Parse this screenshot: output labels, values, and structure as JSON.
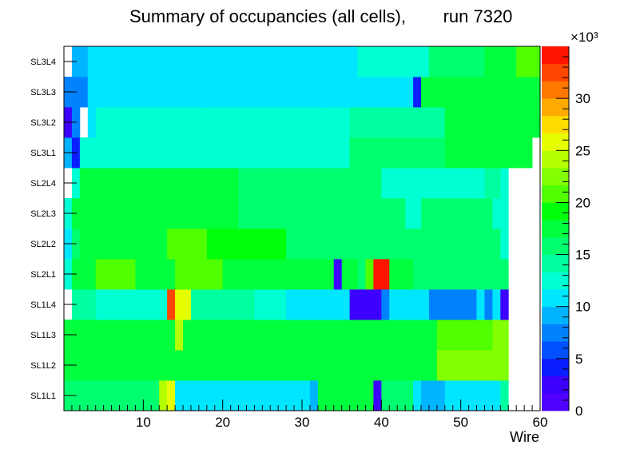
{
  "chart_data": {
    "type": "heatmap",
    "title": "Summary of occupancies (all cells),",
    "run_label": "run 7320",
    "xlabel": "Wire",
    "x_range": [
      0,
      60
    ],
    "x_ticks": [
      10,
      20,
      30,
      40,
      50,
      60
    ],
    "y_categories": [
      "SL1L1",
      "SL1L2",
      "SL1L3",
      "SL1L4",
      "SL2L1",
      "SL2L2",
      "SL2L3",
      "SL2L4",
      "SL3L1",
      "SL3L2",
      "SL3L3",
      "SL3L4"
    ],
    "z_range": [
      0,
      35000
    ],
    "z_exponent_label": "×10³",
    "z_ticks": [
      "0",
      "5",
      "10",
      "15",
      "20",
      "25",
      "30"
    ],
    "z_tick_values": [
      0,
      5,
      10,
      15,
      20,
      25,
      30
    ],
    "palette": [
      "#5000ff",
      "#3c00ff",
      "#0a1eff",
      "#0050ff",
      "#0082ff",
      "#00b4ff",
      "#00e6ff",
      "#00ffd2",
      "#00ffa0",
      "#00ff6e",
      "#00ff3c",
      "#00ff0a",
      "#50ff00",
      "#82ff00",
      "#b4ff00",
      "#e6ff00",
      "#ffdc00",
      "#ffaa00",
      "#ff7800",
      "#ff4600",
      "#ff1400"
    ],
    "values_thousands": {
      "SL1L1": [
        15,
        15,
        15,
        15,
        16,
        16,
        16,
        16,
        16,
        16,
        16,
        16,
        24,
        26,
        11,
        11,
        11,
        11,
        11,
        11,
        11,
        11,
        11,
        11,
        11,
        10,
        10,
        10,
        10,
        10,
        10,
        9,
        17,
        17,
        18,
        18,
        18,
        18,
        18,
        3,
        16,
        16,
        16,
        16,
        10,
        9,
        9,
        9,
        11,
        11,
        11,
        11,
        11,
        11,
        11,
        14,
        0,
        0,
        0,
        0
      ],
      "SL1L2": [
        18,
        18,
        18,
        18,
        18,
        18,
        18,
        18,
        18,
        18,
        18,
        18,
        18,
        18,
        18,
        18,
        18,
        18,
        18,
        18,
        17,
        17,
        17,
        17,
        17,
        17,
        17,
        17,
        17,
        17,
        17,
        17,
        17,
        17,
        17,
        17,
        17,
        17,
        17,
        17,
        17,
        17,
        17,
        17,
        17,
        17,
        17,
        22,
        22,
        22,
        22,
        22,
        22,
        22,
        22,
        22,
        0,
        0,
        0,
        0
      ],
      "SL1L3": [
        18,
        18,
        18,
        18,
        18,
        18,
        18,
        18,
        18,
        18,
        18,
        18,
        18,
        18,
        24,
        18,
        18,
        18,
        18,
        18,
        18,
        18,
        18,
        18,
        18,
        18,
        18,
        18,
        18,
        18,
        18,
        18,
        18,
        18,
        18,
        18,
        18,
        18,
        18,
        18,
        18,
        18,
        18,
        18,
        18,
        18,
        18,
        21,
        21,
        21,
        21,
        21,
        21,
        21,
        23,
        23,
        0,
        0,
        0,
        0
      ],
      "SL1L4": [
        0,
        14,
        14,
        14,
        12,
        12,
        12,
        12,
        12,
        13,
        13,
        13,
        12,
        33,
        26,
        26,
        14,
        14,
        14,
        14,
        14,
        14,
        14,
        14,
        13,
        13,
        13,
        13,
        11,
        11,
        11,
        11,
        11,
        11,
        11,
        11,
        3,
        3,
        3,
        3,
        8,
        11,
        11,
        11,
        11,
        11,
        8,
        8,
        8,
        8,
        8,
        8,
        11,
        8,
        11,
        3,
        0,
        0,
        0,
        0
      ],
      "SL2L1": [
        12,
        18,
        18,
        18,
        20,
        20,
        20,
        20,
        20,
        18,
        18,
        18,
        18,
        18,
        21,
        21,
        21,
        21,
        21,
        21,
        18,
        18,
        18,
        18,
        18,
        18,
        18,
        18,
        18,
        18,
        18,
        18,
        18,
        18,
        3,
        18,
        18,
        16,
        21,
        34,
        34,
        18,
        18,
        18,
        16,
        16,
        16,
        16,
        16,
        16,
        16,
        16,
        16,
        16,
        16,
        16,
        0,
        0,
        0,
        0
      ],
      "SL2L2": [
        10,
        15,
        17,
        17,
        17,
        17,
        17,
        17,
        17,
        17,
        17,
        17,
        17,
        20,
        20,
        20,
        20,
        20,
        19,
        19,
        19,
        19,
        19,
        19,
        19,
        19,
        19,
        19,
        15,
        15,
        15,
        15,
        15,
        15,
        15,
        15,
        15,
        15,
        15,
        15,
        15,
        15,
        15,
        15,
        15,
        15,
        15,
        15,
        15,
        15,
        15,
        15,
        15,
        15,
        15,
        13,
        0,
        0,
        0,
        0
      ],
      "SL2L3": [
        12,
        17,
        18,
        18,
        18,
        18,
        18,
        18,
        18,
        18,
        18,
        18,
        18,
        18,
        18,
        18,
        18,
        18,
        18,
        18,
        18,
        18,
        16,
        16,
        16,
        16,
        16,
        16,
        16,
        16,
        16,
        16,
        16,
        16,
        16,
        16,
        16,
        16,
        16,
        16,
        16,
        16,
        16,
        13,
        13,
        16,
        16,
        15,
        15,
        15,
        15,
        15,
        15,
        15,
        13,
        13,
        0,
        0,
        0,
        0
      ],
      "SL2L4": [
        0,
        12,
        17,
        17,
        17,
        17,
        17,
        17,
        17,
        17,
        17,
        17,
        17,
        17,
        18,
        18,
        18,
        18,
        18,
        18,
        18,
        18,
        16,
        16,
        16,
        16,
        16,
        16,
        16,
        16,
        16,
        16,
        16,
        16,
        16,
        16,
        16,
        16,
        16,
        16,
        12,
        12,
        12,
        12,
        12,
        12,
        12,
        12,
        12,
        12,
        12,
        12,
        12,
        14,
        14,
        12,
        0,
        0,
        0,
        0
      ],
      "SL3L1": [
        9,
        4,
        12,
        13,
        13,
        13,
        13,
        13,
        13,
        13,
        13,
        13,
        13,
        13,
        13,
        13,
        12,
        12,
        12,
        12,
        12,
        12,
        12,
        12,
        12,
        12,
        12,
        12,
        12,
        12,
        12,
        12,
        12,
        12,
        12,
        12,
        15,
        15,
        15,
        15,
        15,
        15,
        15,
        15,
        16,
        16,
        16,
        16,
        17,
        17,
        17,
        17,
        17,
        17,
        17,
        17,
        17,
        17,
        17,
        0
      ],
      "SL3L2": [
        3,
        8,
        0,
        10,
        12,
        12,
        12,
        12,
        12,
        12,
        12,
        12,
        12,
        12,
        12,
        12,
        12,
        12,
        12,
        12,
        12,
        12,
        12,
        12,
        12,
        12,
        12,
        12,
        12,
        12,
        12,
        12,
        12,
        12,
        12,
        12,
        14,
        14,
        14,
        14,
        14,
        14,
        14,
        14,
        14,
        14,
        14,
        14,
        17,
        17,
        17,
        17,
        17,
        17,
        17,
        17,
        17,
        17,
        17,
        17
      ],
      "SL3L3": [
        8,
        8,
        8,
        11,
        11,
        11,
        11,
        11,
        11,
        11,
        11,
        11,
        11,
        11,
        11,
        11,
        11,
        11,
        11,
        11,
        11,
        11,
        11,
        11,
        11,
        11,
        11,
        11,
        11,
        11,
        11,
        11,
        11,
        11,
        11,
        11,
        11,
        11,
        11,
        11,
        11,
        11,
        11,
        11,
        4,
        17,
        17,
        17,
        17,
        17,
        17,
        17,
        17,
        17,
        17,
        17,
        17,
        17,
        17,
        17
      ],
      "SL3L4": [
        0,
        9,
        9,
        10,
        10,
        11,
        11,
        11,
        11,
        11,
        11,
        11,
        11,
        11,
        11,
        11,
        11,
        11,
        11,
        11,
        11,
        11,
        11,
        11,
        11,
        11,
        11,
        11,
        11,
        11,
        11,
        11,
        11,
        11,
        11,
        11,
        11,
        13,
        13,
        13,
        13,
        13,
        13,
        13,
        13,
        13,
        16,
        16,
        16,
        16,
        16,
        16,
        16,
        18,
        18,
        18,
        18,
        20,
        20,
        20
      ]
    }
  }
}
